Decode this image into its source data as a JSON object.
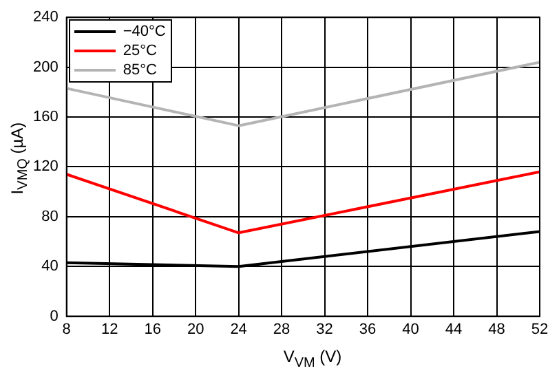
{
  "chart_data": {
    "type": "line",
    "xlabel": "V$_{VM}$ (V)",
    "ylabel": "I$_{VMQ}$ (µA)",
    "x": [
      8,
      24,
      52
    ],
    "series": [
      {
        "name": "−40°C",
        "color": "#000000",
        "values": [
          43,
          40,
          68
        ]
      },
      {
        "name": "25°C",
        "color": "#ff0000",
        "values": [
          114,
          67,
          116
        ]
      },
      {
        "name": "85°C",
        "color": "#b4b4b4",
        "values": [
          183,
          153,
          204
        ]
      }
    ],
    "xlim": [
      8,
      52
    ],
    "xticks": [
      8,
      12,
      16,
      20,
      24,
      28,
      32,
      36,
      40,
      44,
      48,
      52
    ],
    "ylim": [
      0,
      240
    ],
    "yticks": [
      0,
      40,
      80,
      120,
      160,
      200,
      240
    ],
    "grid": true,
    "legend": "top left",
    "marker": "none",
    "line_style": "solid"
  }
}
